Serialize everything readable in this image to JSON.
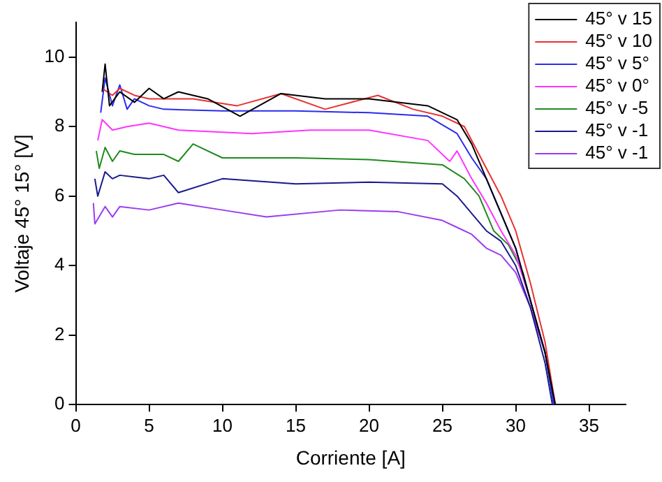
{
  "chart_data": {
    "type": "line",
    "xlabel": "Corriente [A]",
    "ylabel": "Voltaje 45° 15° [V]",
    "xlim": [
      0,
      37.5
    ],
    "xticks": [
      0,
      5,
      10,
      15,
      20,
      25,
      30,
      35
    ],
    "ylim": [
      0,
      11
    ],
    "yticks": [
      0,
      2,
      4,
      6,
      8,
      10
    ],
    "grid": false,
    "legend": "top right",
    "marker": "none",
    "line_style": "solid",
    "series": [
      {
        "name": "45° v 15",
        "color": "#000000",
        "x": [
          1.8,
          2,
          2.3,
          3,
          4,
          5,
          6,
          7,
          9,
          11.2,
          14,
          17,
          20,
          22,
          24,
          26,
          27,
          28,
          29,
          30,
          31,
          32,
          32.7
        ],
        "values": [
          9.0,
          9.8,
          8.6,
          9.0,
          8.7,
          9.1,
          8.8,
          9.0,
          8.8,
          8.3,
          8.95,
          8.8,
          8.8,
          8.7,
          8.6,
          8.2,
          7.5,
          6.5,
          5.5,
          4.5,
          3,
          1.5,
          0
        ]
      },
      {
        "name": "45° v 10",
        "color": "#e8312f",
        "x": [
          1.8,
          2.5,
          3,
          4,
          5,
          8,
          11,
          14,
          17,
          20.6,
          23,
          25,
          26.5,
          28,
          29,
          30,
          31,
          32,
          32.7
        ],
        "values": [
          9.1,
          8.9,
          9.1,
          8.9,
          8.8,
          8.8,
          8.6,
          8.95,
          8.5,
          8.9,
          8.5,
          8.3,
          8.0,
          6.8,
          6.0,
          5.0,
          3.5,
          1.8,
          0
        ]
      },
      {
        "name": "45° v 5°",
        "color": "#2b2bf0",
        "x": [
          1.7,
          2,
          2.5,
          3,
          3.5,
          4,
          5,
          6,
          10,
          15,
          20,
          24,
          26,
          27,
          28,
          29,
          30,
          31,
          32,
          32.6
        ],
        "values": [
          8.4,
          9.4,
          8.6,
          9.2,
          8.5,
          8.8,
          8.6,
          8.5,
          8.45,
          8.45,
          8.4,
          8.3,
          7.8,
          7.1,
          6.5,
          5.5,
          4.5,
          3.0,
          1.5,
          0
        ]
      },
      {
        "name": "45° v 0°",
        "color": "#ff33ff",
        "x": [
          1.5,
          1.8,
          2.5,
          3.5,
          5,
          7,
          12,
          16,
          20,
          24,
          25.5,
          26,
          27,
          28,
          29,
          30,
          31,
          32,
          32.7
        ],
        "values": [
          7.6,
          8.2,
          7.9,
          8.0,
          8.1,
          7.9,
          7.8,
          7.9,
          7.9,
          7.6,
          7.0,
          7.3,
          6.5,
          5.8,
          5.0,
          4.3,
          3.0,
          1.5,
          0
        ]
      },
      {
        "name": "45° v -5",
        "color": "#1f8a1f",
        "x": [
          1.4,
          1.6,
          2,
          2.5,
          3,
          4,
          6,
          7,
          8,
          10,
          15,
          20,
          25,
          26.5,
          27.5,
          28.5,
          29.5,
          30.5,
          31,
          32,
          32.6
        ],
        "values": [
          7.3,
          6.8,
          7.4,
          7.0,
          7.3,
          7.2,
          7.2,
          7.0,
          7.5,
          7.1,
          7.1,
          7.05,
          6.9,
          6.5,
          6.0,
          5.0,
          4.6,
          3.8,
          3.0,
          1.5,
          0
        ]
      },
      {
        "name": "45° v -1",
        "color": "#1a1a8c",
        "x": [
          1.3,
          1.5,
          2,
          2.5,
          3,
          5,
          6,
          7,
          10,
          15,
          20,
          25,
          26,
          27,
          28,
          29,
          30,
          31,
          32,
          32.5
        ],
        "values": [
          6.5,
          6.0,
          6.7,
          6.5,
          6.6,
          6.5,
          6.6,
          6.1,
          6.5,
          6.35,
          6.4,
          6.35,
          6.0,
          5.5,
          5.0,
          4.7,
          4.0,
          2.8,
          1.2,
          0
        ]
      },
      {
        "name": "45° v -1",
        "color": "#9a3cf0",
        "x": [
          1.2,
          1.3,
          2,
          2.5,
          3,
          5,
          7,
          10,
          13,
          18,
          22,
          25,
          26,
          27,
          28,
          29,
          30,
          31,
          32,
          32.6
        ],
        "values": [
          5.8,
          5.2,
          5.7,
          5.4,
          5.7,
          5.6,
          5.8,
          5.6,
          5.4,
          5.6,
          5.55,
          5.3,
          5.1,
          4.9,
          4.5,
          4.3,
          3.8,
          2.8,
          1.5,
          0
        ]
      }
    ]
  }
}
